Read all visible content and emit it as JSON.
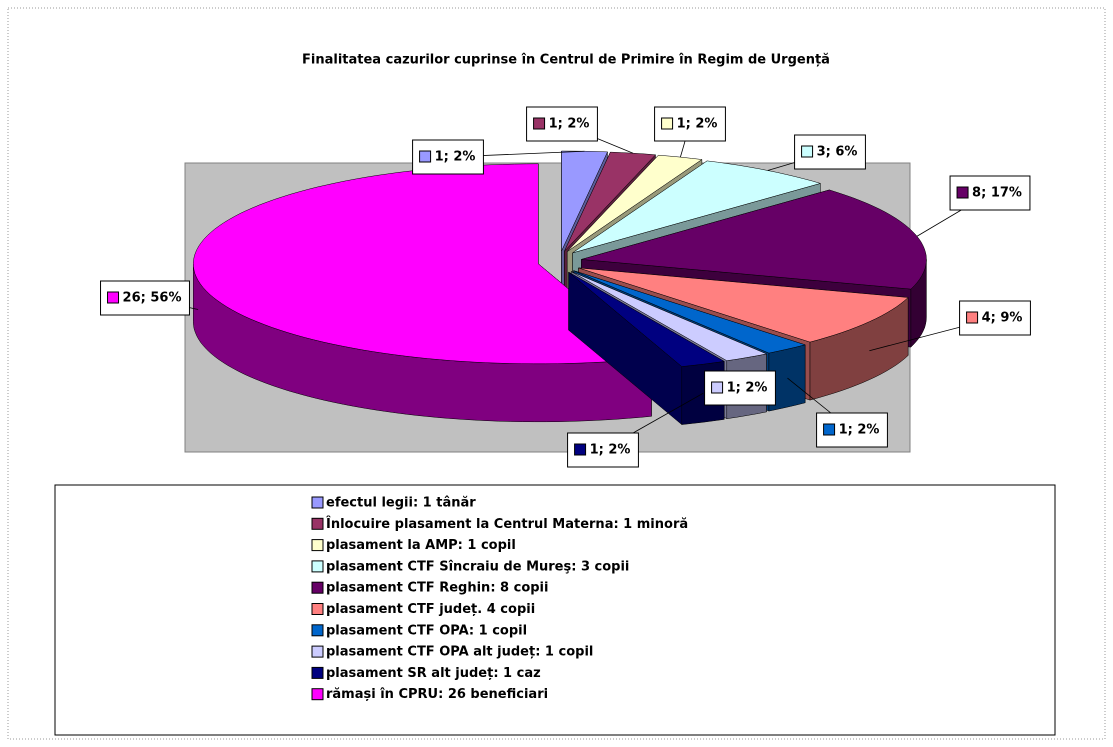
{
  "chart_data": {
    "type": "pie3d",
    "title": "Finalitatea cazurilor cuprinse în Centrul de Primire în Regim de Urgență",
    "categories": [
      "efectul legii: 1 tânăr",
      "Înlocuire plasament la Centrul Materna: 1 minoră",
      "plasament la AMP: 1 copil",
      "plasament CTF Sîncraiu de Mureş: 3 copii",
      "plasament CTF Reghin: 8 copii",
      "plasament CTF județ. 4 copii",
      "plasament CTF OPA: 1 copil",
      "plasament CTF OPA alt județ: 1 copil",
      "plasament SR alt județ: 1 caz",
      "rămași în CPRU: 26 beneficiari"
    ],
    "values": [
      1,
      1,
      1,
      3,
      8,
      4,
      1,
      1,
      1,
      26
    ],
    "value_labels": [
      "1; 2%",
      "1; 2%",
      "1; 2%",
      "3; 6%",
      "8; 17%",
      "4; 9%",
      "1; 2%",
      "1; 2%",
      "1; 2%",
      "26; 56%"
    ],
    "colors": [
      "#9999ff",
      "#993366",
      "#ffffcc",
      "#ccffff",
      "#660066",
      "#ff8080",
      "#0066cc",
      "#ccccff",
      "#000080",
      "#ff00ff"
    ]
  }
}
